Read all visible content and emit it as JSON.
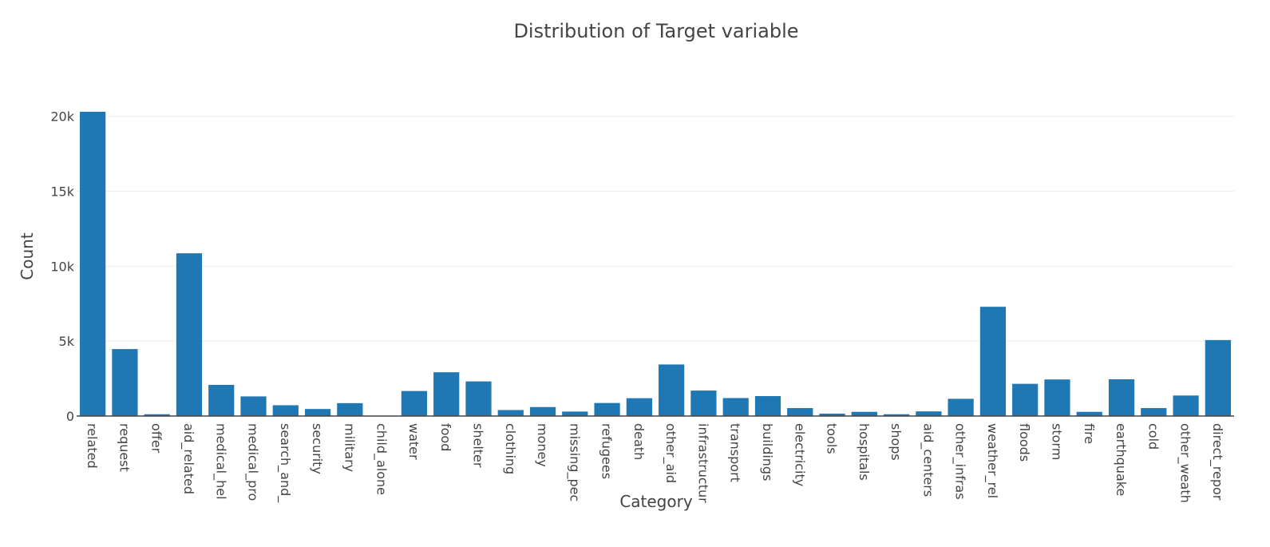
{
  "chart_data": {
    "type": "bar",
    "title": "Distribution of Target variable",
    "xlabel": "Category",
    "ylabel": "Count",
    "ylim": [
      0,
      20300
    ],
    "yticks": [
      0,
      5000,
      10000,
      15000,
      20000
    ],
    "ytick_labels": [
      "0",
      "5k",
      "10k",
      "15k",
      "20k"
    ],
    "grid": "horizontal",
    "bar_color": "#1f77b4",
    "categories": [
      "related",
      "request",
      "offer",
      "aid_related",
      "medical_hel",
      "medical_pro",
      "search_and_",
      "security",
      "military",
      "child_alone",
      "water",
      "food",
      "shelter",
      "clothing",
      "money",
      "missing_pec",
      "refugees",
      "death",
      "other_aid",
      "infrastructur",
      "transport",
      "buildings",
      "electricity",
      "tools",
      "hospitals",
      "shops",
      "aid_centers",
      "other_infras",
      "weather_rel",
      "floods",
      "storm",
      "fire",
      "earthquake",
      "cold",
      "other_weath",
      "direct_repor"
    ],
    "values": [
      20300,
      4470,
      120,
      10860,
      2080,
      1310,
      720,
      470,
      860,
      0,
      1670,
      2920,
      2310,
      400,
      600,
      300,
      870,
      1190,
      3440,
      1700,
      1200,
      1330,
      530,
      160,
      280,
      120,
      310,
      1150,
      7290,
      2150,
      2440,
      280,
      2450,
      530,
      1370,
      5070
    ]
  }
}
